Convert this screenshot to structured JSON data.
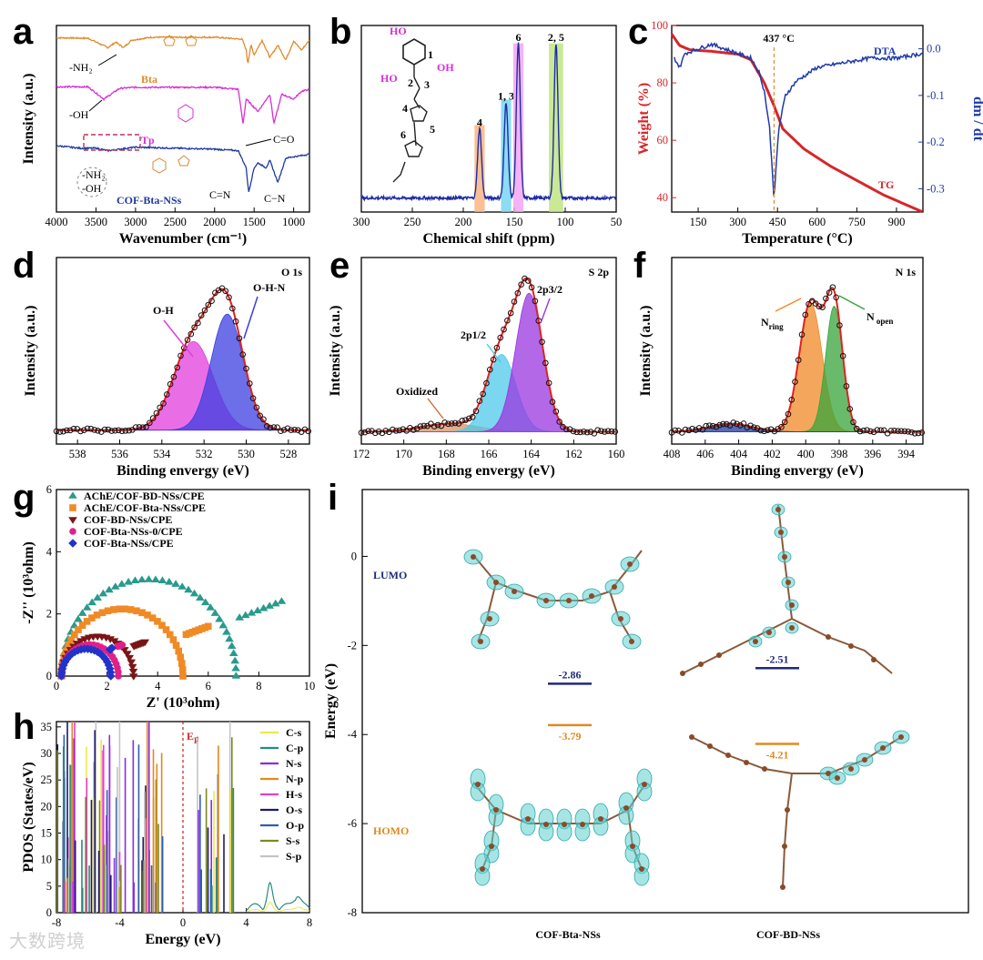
{
  "watermark": "大数跨境",
  "panels": {
    "a": "a",
    "b": "b",
    "c": "c",
    "d": "d",
    "e": "e",
    "f": "f",
    "g": "g",
    "h": "h",
    "i": "i"
  },
  "chart_data": [
    {
      "id": "a",
      "type": "line",
      "xlabel": "Wavenumber (cm⁻¹)",
      "ylabel": "Intensity (a.u.)",
      "xlim": [
        4000,
        800
      ],
      "xticks": [
        4000,
        3500,
        3000,
        2500,
        2000,
        1500,
        1000
      ],
      "series": [
        {
          "name": "Bta",
          "color": "#e08a2a",
          "x": [
            4000,
            3600,
            3350,
            3250,
            3150,
            3050,
            2800,
            2000,
            1650,
            1600,
            1580,
            1540,
            1500,
            1400,
            1300,
            1200,
            1100,
            1000,
            900,
            800
          ],
          "y": [
            3.75,
            3.74,
            3.55,
            3.66,
            3.55,
            3.7,
            3.76,
            3.76,
            3.72,
            3.5,
            3.22,
            3.6,
            3.4,
            3.7,
            3.35,
            3.6,
            3.3,
            3.68,
            3.5,
            3.7
          ]
        },
        {
          "name": "Tp",
          "color": "#d62fd6",
          "x": [
            4000,
            3600,
            3400,
            3200,
            3000,
            2000,
            1700,
            1640,
            1600,
            1450,
            1300,
            1250,
            1150,
            1000,
            900,
            800
          ],
          "y": [
            2.75,
            2.75,
            2.5,
            2.72,
            2.74,
            2.74,
            2.7,
            2.0,
            2.5,
            2.25,
            2.6,
            2.0,
            2.6,
            2.5,
            2.66,
            2.7
          ]
        },
        {
          "name": "COF-Bta-NSs",
          "color": "#1f3a9e",
          "x": [
            4000,
            3700,
            3500,
            3350,
            3200,
            3000,
            2500,
            2000,
            1700,
            1600,
            1570,
            1500,
            1450,
            1350,
            1300,
            1200,
            1100,
            900,
            800
          ],
          "y": [
            1.55,
            1.5,
            1.5,
            1.45,
            1.48,
            1.52,
            1.5,
            1.48,
            1.45,
            1.1,
            0.6,
            1.1,
            1.2,
            1.1,
            1.25,
            0.8,
            1.3,
            1.35,
            1.38
          ]
        }
      ],
      "annotations": [
        "-NH₂",
        "-OH",
        "C=O",
        "C=N",
        "C−N",
        "-NH₂",
        "-OH"
      ]
    },
    {
      "id": "b",
      "type": "line",
      "xlabel": "Chemical shift (ppm)",
      "ylabel": "",
      "xlim": [
        300,
        50
      ],
      "xticks": [
        300,
        250,
        200,
        150,
        100,
        50
      ],
      "peaks": [
        {
          "label": "4",
          "x": 184,
          "y": 0.45
        },
        {
          "label": "1, 3",
          "x": 158,
          "y": 0.62
        },
        {
          "label": "6",
          "x": 146,
          "y": 1.0
        },
        {
          "label": "2, 5",
          "x": 109,
          "y": 1.0
        }
      ],
      "structure_labels": [
        "HO",
        "HO",
        "OH",
        "1",
        "2",
        "3",
        "4",
        "5",
        "6"
      ]
    },
    {
      "id": "c",
      "type": "line",
      "xlabel": "Temperature (°C)",
      "ylabel_left": "Weight (%)",
      "ylabel_right": "dm / dt",
      "xlim": [
        50,
        1000
      ],
      "xticks": [
        150,
        300,
        450,
        600,
        750,
        900
      ],
      "ylim_left": [
        35,
        100
      ],
      "yticks_left": [
        40,
        60,
        80,
        100
      ],
      "ylim_right": [
        -0.35,
        0.05
      ],
      "yticks_right": [
        0.0,
        -0.1,
        -0.2,
        -0.3
      ],
      "annotation": "437 °C",
      "series": [
        {
          "name": "TG",
          "color": "#d7262a",
          "x": [
            50,
            80,
            120,
            200,
            300,
            350,
            400,
            437,
            470,
            550,
            650,
            750,
            850,
            950,
            1000
          ],
          "y": [
            97,
            93,
            91.5,
            91,
            90,
            88,
            80,
            72,
            64,
            57,
            51,
            46,
            41,
            37,
            35
          ]
        },
        {
          "name": "DTA",
          "color": "#1f3aa8",
          "x": [
            60,
            80,
            100,
            150,
            200,
            250,
            300,
            350,
            380,
            400,
            420,
            437,
            455,
            480,
            520,
            600,
            700,
            800,
            900,
            1000
          ],
          "y": [
            -0.02,
            -0.04,
            -0.01,
            0.0,
            0.01,
            0.0,
            -0.01,
            -0.02,
            -0.05,
            -0.09,
            -0.17,
            -0.32,
            -0.17,
            -0.1,
            -0.07,
            -0.04,
            -0.03,
            -0.02,
            -0.02,
            -0.01
          ]
        }
      ]
    },
    {
      "id": "d",
      "type": "area",
      "title": "O 1s",
      "xlabel": "Binding envergy (eV)",
      "ylabel": "Intensity (a.u.)",
      "xlim": [
        539,
        527
      ],
      "xticks": [
        538,
        536,
        534,
        532,
        530,
        528
      ],
      "components": [
        {
          "name": "O-H",
          "center": 532.5,
          "height": 0.55,
          "fwhm": 2.2,
          "color": "#e23ddd"
        },
        {
          "name": "O-H-N",
          "center": 530.9,
          "height": 0.72,
          "fwhm": 1.8,
          "color": "#3b3fe0"
        }
      ],
      "baseline": 0.03
    },
    {
      "id": "e",
      "type": "area",
      "title": "S 2p",
      "xlabel": "Binding envergy (eV)",
      "ylabel": "Intensity (a.u.)",
      "xlim": [
        172,
        160
      ],
      "xticks": [
        172,
        170,
        168,
        166,
        164,
        162,
        160
      ],
      "components": [
        {
          "name": "Oxidized",
          "center": 167.8,
          "height": 0.05,
          "fwhm": 3.2,
          "color": "#d9926a"
        },
        {
          "name": "2p1/2",
          "center": 165.4,
          "height": 0.48,
          "fwhm": 1.6,
          "color": "#4ec9ea"
        },
        {
          "name": "2p3/2",
          "center": 164.1,
          "height": 0.86,
          "fwhm": 1.5,
          "color": "#9a35e0"
        }
      ],
      "baseline": 0.02
    },
    {
      "id": "f",
      "type": "area",
      "title": "N 1s",
      "xlabel": "Binding envergy (eV)",
      "ylabel": "Intensity (a.u.)",
      "xlim": [
        408,
        393
      ],
      "xticks": [
        408,
        406,
        404,
        402,
        400,
        398,
        396,
        394
      ],
      "components": [
        {
          "name": "N_ring",
          "center": 399.7,
          "height": 0.8,
          "fwhm": 1.6,
          "color": "#f08a25"
        },
        {
          "name": "N_open",
          "center": 398.3,
          "height": 0.78,
          "fwhm": 1.2,
          "color": "#37a43a"
        },
        {
          "name": "",
          "center": 404.5,
          "height": 0.05,
          "fwhm": 3.0,
          "color": "#1f3a9e"
        }
      ],
      "baseline": 0.02,
      "labels": [
        "N",
        "ring",
        "N",
        "open"
      ]
    },
    {
      "id": "g",
      "type": "scatter",
      "xlabel": "Z' (10³ohm)",
      "ylabel": "-Z'' (10³ohm)",
      "xlim": [
        0,
        10
      ],
      "ylim": [
        0,
        6
      ],
      "xticks": [
        0,
        2,
        4,
        6,
        8,
        10
      ],
      "yticks": [
        0,
        2,
        4,
        6
      ],
      "series": [
        {
          "name": "AChE/COF-BD-NSs/CPE",
          "color": "#2a9a8c",
          "marker": "triangle",
          "R": 6.9,
          "tail": [
            [
              7.0,
              1.8
            ],
            [
              8.9,
              2.4
            ]
          ]
        },
        {
          "name": "AChE/COF-Bta-NSs/CPE",
          "color": "#f08a25",
          "marker": "square",
          "R": 4.8,
          "tail": [
            [
              5.0,
              1.3
            ],
            [
              6.0,
              1.6
            ]
          ]
        },
        {
          "name": "COF-BD-NSs/CPE",
          "color": "#7a1515",
          "marker": "tri-down",
          "R": 2.85,
          "tail": [
            [
              3.0,
              0.95
            ],
            [
              3.5,
              1.1
            ]
          ]
        },
        {
          "name": "COF-Bta-NSs-0/CPE",
          "color": "#e0208a",
          "marker": "circle",
          "R": 2.25,
          "tail": [
            [
              2.4,
              0.95
            ],
            [
              2.6,
              1.0
            ]
          ]
        },
        {
          "name": "COF-Bta-NSs/CPE",
          "color": "#2233c9",
          "marker": "diamond",
          "R": 1.95,
          "tail": [
            [
              2.1,
              0.85
            ],
            [
              2.2,
              0.9
            ]
          ]
        }
      ]
    },
    {
      "id": "h",
      "type": "line",
      "xlabel": "Energy (eV)",
      "ylabel": "PDOS (States/eV)",
      "xlim": [
        -8,
        8
      ],
      "ylim": [
        0,
        36
      ],
      "xticks": [
        -8,
        -4,
        0,
        4,
        8
      ],
      "yticks": [
        0,
        5,
        10,
        15,
        20,
        25,
        30,
        35
      ],
      "fermi_label": "E",
      "fermi_sub": "F",
      "legend": [
        {
          "name": "C-s",
          "color": "#f2e64b"
        },
        {
          "name": "C-p",
          "color": "#2a8a80"
        },
        {
          "name": "N-s",
          "color": "#8a2be2"
        },
        {
          "name": "N-p",
          "color": "#e08a1e"
        },
        {
          "name": "H-s",
          "color": "#e33fd0"
        },
        {
          "name": "O-s",
          "color": "#1a1a6e"
        },
        {
          "name": "O-p",
          "color": "#2f5fb0"
        },
        {
          "name": "S-s",
          "color": "#7a8a1e"
        },
        {
          "name": "S-p",
          "color": "#c4c4c4"
        }
      ]
    },
    {
      "id": "i",
      "type": "scatter",
      "ylabel": "Energy (eV)",
      "ylim": [
        -8,
        1.5
      ],
      "yticks": [
        0,
        -2,
        -4,
        -6,
        -8
      ],
      "labels": {
        "lumo": "LUMO",
        "homo": "HOMO",
        "mol1": "COF-Bta-NSs",
        "mol2": "COF-BD-NSs"
      },
      "levels": [
        {
          "label": "-2.86",
          "value": -2.86,
          "color": "#1f2a7a",
          "molecule": "COF-Bta-NSs"
        },
        {
          "label": "-3.79",
          "value": -3.79,
          "color": "#e08a1e",
          "molecule": "COF-Bta-NSs"
        },
        {
          "label": "-2.51",
          "value": -2.51,
          "color": "#1f2a7a",
          "molecule": "COF-BD-NSs"
        },
        {
          "label": "-4.21",
          "value": -4.21,
          "color": "#e08a1e",
          "molecule": "COF-BD-NSs"
        }
      ]
    }
  ]
}
